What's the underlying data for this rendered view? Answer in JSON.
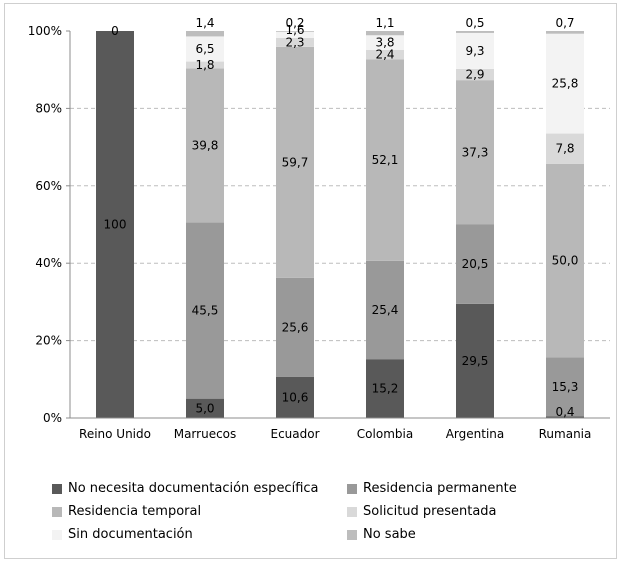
{
  "chart_data": {
    "type": "bar",
    "stacked": true,
    "categories": [
      "Reino Unido",
      "Marruecos",
      "Ecuador",
      "Colombia",
      "Argentina",
      "Rumania"
    ],
    "ylim": [
      0,
      100
    ],
    "yticks": [
      "0%",
      "20%",
      "40%",
      "60%",
      "80%",
      "100%"
    ],
    "grid": true,
    "legend_position": "bottom",
    "series": [
      {
        "name": "No necesita documentación específica",
        "color": "#595959",
        "values": [
          100,
          5.0,
          10.6,
          15.2,
          29.5,
          0.4
        ],
        "labels": [
          "100",
          "5,0",
          "10,6",
          "15,2",
          "29,5",
          "0,4"
        ]
      },
      {
        "name": "Residencia permanente",
        "color": "#999999",
        "values": [
          0,
          45.5,
          25.6,
          25.4,
          20.5,
          15.3
        ],
        "labels": [
          "",
          "45,5",
          "25,6",
          "25,4",
          "20,5",
          "15,3"
        ]
      },
      {
        "name": "Residencia temporal",
        "color": "#b8b8b8",
        "values": [
          0,
          39.8,
          59.7,
          52.1,
          37.3,
          50.0
        ],
        "labels": [
          "",
          "39,8",
          "59,7",
          "52,1",
          "37,3",
          "50,0"
        ]
      },
      {
        "name": "Solicitud presentada",
        "color": "#d9d9d9",
        "values": [
          0,
          1.8,
          2.3,
          2.4,
          2.9,
          7.8
        ],
        "labels": [
          "",
          "1,8",
          "2,3",
          "2,4",
          "2,9",
          "7,8"
        ]
      },
      {
        "name": "Sin documentación",
        "color": "#f3f3f3",
        "values": [
          0,
          6.5,
          1.6,
          3.8,
          9.3,
          25.8
        ],
        "labels": [
          "",
          "6,5",
          "1,6",
          "3,8",
          "9,3",
          "25,8"
        ]
      },
      {
        "name": "No sabe",
        "color": "#bdbdbd",
        "values": [
          0,
          1.4,
          0.2,
          1.1,
          0.5,
          0.7
        ],
        "labels": [
          "0",
          "1,4",
          "0,2",
          "1,1",
          "0,5",
          "0,7"
        ]
      }
    ]
  }
}
